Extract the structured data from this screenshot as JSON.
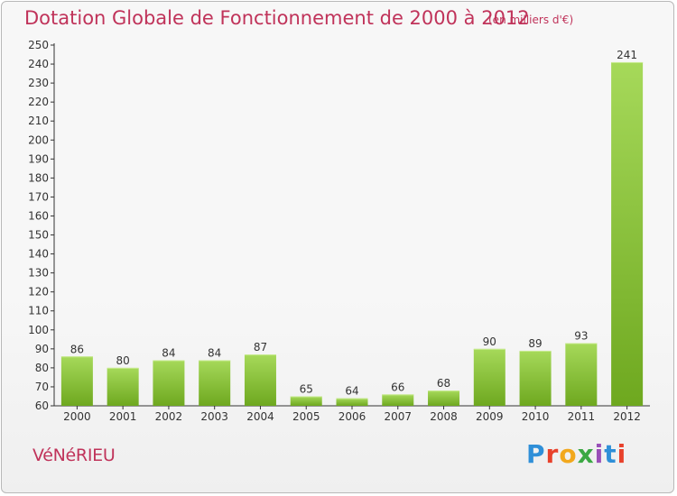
{
  "header": {
    "title": "Dotation Globale de Fonctionnement de 2000 à 2012",
    "unit_note": "(en milliers d'€)"
  },
  "footer": {
    "commune": "VéNéRIEU",
    "logo_text": "Proxiti",
    "logo_colors": [
      "#2f8fd8",
      "#e8412b",
      "#f2a81d",
      "#3aa843",
      "#9a4fb8",
      "#2f8fd8",
      "#e8412b"
    ]
  },
  "colors": {
    "title": "#c0335a",
    "bar_light": "#a6d95a",
    "bar_dark": "#6ea81f",
    "axis": "#333333",
    "grid": "#d8d8d8"
  },
  "chart_data": {
    "type": "bar",
    "categories": [
      "2000",
      "2001",
      "2002",
      "2003",
      "2004",
      "2005",
      "2006",
      "2007",
      "2008",
      "2009",
      "2010",
      "2011",
      "2012"
    ],
    "values": [
      86,
      80,
      84,
      84,
      87,
      65,
      64,
      66,
      68,
      90,
      89,
      93,
      241
    ],
    "value_labels": [
      "86",
      "80",
      "84",
      "84",
      "87",
      "65",
      "64",
      "66",
      "68",
      "90",
      "89",
      "93",
      "241"
    ],
    "ylim": [
      60,
      250
    ],
    "yticks": [
      "60",
      "70",
      "80",
      "90",
      "100",
      "110",
      "120",
      "130",
      "140",
      "150",
      "160",
      "170",
      "180",
      "190",
      "200",
      "210",
      "220",
      "230",
      "240",
      "250"
    ],
    "grid": false,
    "title": "Dotation Globale de Fonctionnement de 2000 à 2012",
    "xlabel": "",
    "ylabel": ""
  }
}
